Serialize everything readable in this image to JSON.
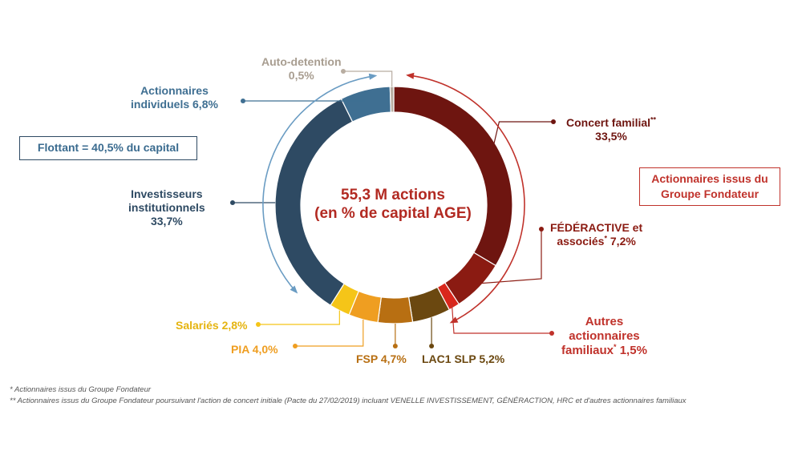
{
  "chart_data": {
    "type": "pie",
    "title": "55,3 M actions",
    "subtitle": "(en % de capital AGE)",
    "slices": [
      {
        "line1": "Concert familial",
        "sup": "**",
        "line2": "33,5%",
        "value": 33.5,
        "color": "#6e1510"
      },
      {
        "line1": "FÉDÉRACTIVE et",
        "line2": "associés",
        "sup": "*",
        "line2b": " 7,2%",
        "value": 7.2,
        "color": "#8b1b12"
      },
      {
        "line1": "Autres",
        "line2": "actionnaires",
        "line3": "familiaux",
        "sup": "*",
        "line3b": " 1,5%",
        "value": 1.5,
        "color": "#d9271c"
      },
      {
        "line1": "LAC1 SLP 5,2%",
        "value": 5.2,
        "color": "#6b4810"
      },
      {
        "line1": "FSP 4,7%",
        "value": 4.7,
        "color": "#b86f12"
      },
      {
        "line1": "PIA 4,0%",
        "value": 4.0,
        "color": "#ef9e21"
      },
      {
        "line1": "Salariés 2,8%",
        "value": 2.8,
        "color": "#f5c518"
      },
      {
        "line1": "Investisseurs",
        "line2": "institutionnels",
        "line3": "33,7%",
        "value": 33.7,
        "color": "#2e4a63"
      },
      {
        "line1": "Actionnaires",
        "line2": "individuels  6,8%",
        "value": 6.8,
        "color": "#3f6f92"
      },
      {
        "line1": "Auto-detention",
        "line2": "0,5%",
        "value": 0.5,
        "color": "#b8ada1"
      }
    ]
  },
  "boxes": {
    "flottant": "Flottant  = 40,5% du capital",
    "fondateur_line1": "Actionnaires issus du",
    "fondateur_line2": "Groupe Fondateur"
  },
  "footnotes": {
    "note1": "*  Actionnaires issus du Groupe Fondateur",
    "note2": "** Actionnaires issus du Groupe Fondateur poursuivant l'action de concert initiale (Pacte du 27/02/2019)  incluant VENELLE INVESTISSEMENT, GÉNÉRACTION, HRC et d'autres actionnaires familiaux"
  },
  "colors": {
    "flottant_accent": "#3a6b8f",
    "fondateur_accent": "#c0322b"
  }
}
